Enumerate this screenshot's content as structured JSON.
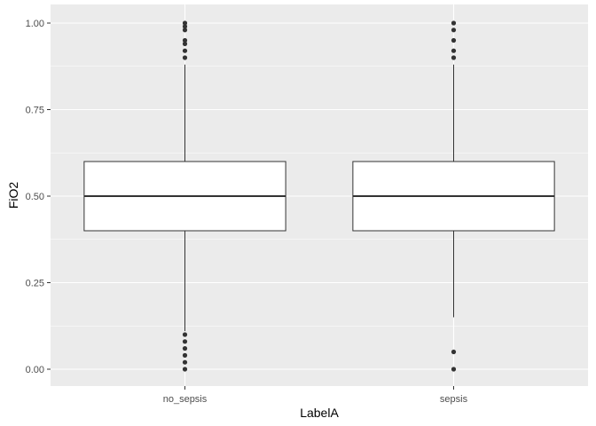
{
  "chart_data": {
    "type": "boxplot",
    "xlabel": "LabelA",
    "ylabel": "FiO2",
    "ylim": [
      -0.035,
      1.035
    ],
    "y_ticks": [
      0.0,
      0.25,
      0.5,
      0.75,
      1.0
    ],
    "y_tick_labels": [
      "0.00",
      "0.25",
      "0.50",
      "0.75",
      "1.00"
    ],
    "grid": true,
    "categories": [
      "no_sepsis",
      "sepsis"
    ],
    "boxes": [
      {
        "category": "no_sepsis",
        "whisker_low": 0.11,
        "q1": 0.4,
        "median": 0.5,
        "q3": 0.6,
        "whisker_high": 0.88,
        "outliers": [
          0.0,
          0.02,
          0.04,
          0.06,
          0.08,
          0.1,
          0.9,
          0.92,
          0.94,
          0.95,
          0.98,
          0.99,
          1.0
        ]
      },
      {
        "category": "sepsis",
        "whisker_low": 0.15,
        "q1": 0.4,
        "median": 0.5,
        "q3": 0.6,
        "whisker_high": 0.88,
        "outliers": [
          0.0,
          0.05,
          0.9,
          0.92,
          0.95,
          0.98,
          1.0
        ]
      }
    ],
    "colors": {
      "panel_background": "#ebebeb",
      "grid_major": "#ffffff",
      "box_fill": "#ffffff",
      "box_line": "#333333",
      "outlier_point": "#333333",
      "tick_text": "#4d4d4d"
    }
  }
}
